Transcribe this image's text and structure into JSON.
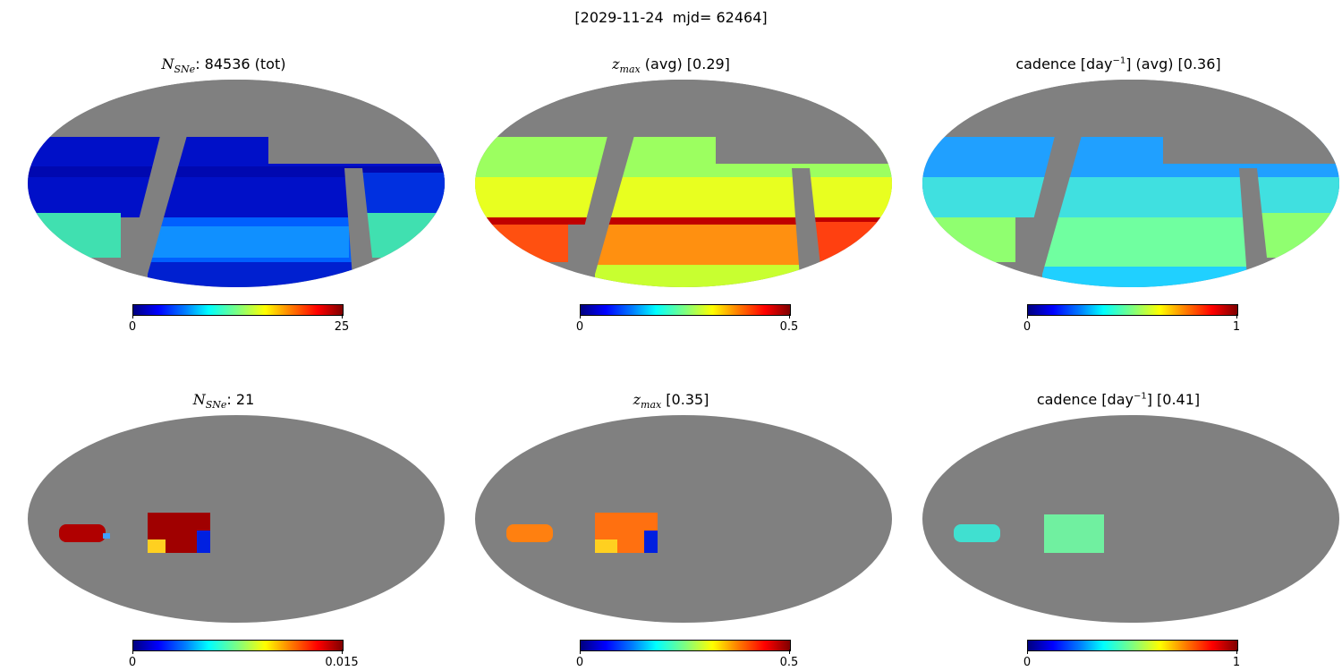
{
  "suptitle": "[2029-11-24  mjd= 62464]",
  "colors": {
    "background_sky": "#808080",
    "colormap": "jet"
  },
  "chart_data": [
    {
      "type": "heatmap",
      "projection": "mollweide",
      "title_prefix": "N",
      "title_sub": "SNe",
      "title_rest": ": 84536 (tot)",
      "colorbar": {
        "min": 0,
        "max": 25,
        "tick_min": "0",
        "tick_max": "25"
      }
    },
    {
      "type": "heatmap",
      "projection": "mollweide",
      "title_prefix": "z",
      "title_sub": "max",
      "title_rest": " (avg) [0.29]",
      "colorbar": {
        "min": 0,
        "max": 0.5,
        "tick_min": "0",
        "tick_max": "0.5"
      }
    },
    {
      "type": "heatmap",
      "projection": "mollweide",
      "title_prefix": "",
      "title_sub": "",
      "title_rest": "cadence [day",
      "title_sup": "−1",
      "title_tail": "] (avg) [0.36]",
      "colorbar": {
        "min": 0,
        "max": 1,
        "tick_min": "0",
        "tick_max": "1"
      }
    },
    {
      "type": "heatmap",
      "projection": "mollweide",
      "title_prefix": "N",
      "title_sub": "SNe",
      "title_rest": ": 21",
      "colorbar": {
        "min": 0,
        "max": 0.015,
        "tick_min": "0",
        "tick_max": "0.015"
      }
    },
    {
      "type": "heatmap",
      "projection": "mollweide",
      "title_prefix": "z",
      "title_sub": "max",
      "title_rest": " [0.35]",
      "colorbar": {
        "min": 0,
        "max": 0.5,
        "tick_min": "0",
        "tick_max": "0.5"
      }
    },
    {
      "type": "heatmap",
      "projection": "mollweide",
      "title_prefix": "",
      "title_sub": "",
      "title_rest": "cadence [day",
      "title_sup": "−1",
      "title_tail": "] [0.41]",
      "colorbar": {
        "min": 0,
        "max": 1,
        "tick_min": "0",
        "tick_max": "1"
      }
    }
  ]
}
